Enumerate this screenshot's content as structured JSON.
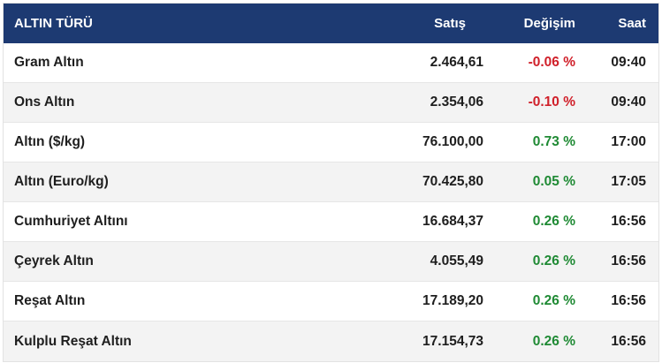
{
  "table": {
    "headers": {
      "name": "ALTIN TÜRÜ",
      "price": "Satış",
      "change": "Değişim",
      "time": "Saat"
    },
    "rows": [
      {
        "name": "Gram Altın",
        "price": "2.464,61",
        "change": "-0.06 %",
        "time": "09:40",
        "direction": "down"
      },
      {
        "name": "Ons Altın",
        "price": "2.354,06",
        "change": "-0.10 %",
        "time": "09:40",
        "direction": "down"
      },
      {
        "name": "Altın ($/kg)",
        "price": "76.100,00",
        "change": "0.73 %",
        "time": "17:00",
        "direction": "up"
      },
      {
        "name": "Altın (Euro/kg)",
        "price": "70.425,80",
        "change": "0.05 %",
        "time": "17:05",
        "direction": "up"
      },
      {
        "name": "Cumhuriyet Altını",
        "price": "16.684,37",
        "change": "0.26 %",
        "time": "16:56",
        "direction": "up"
      },
      {
        "name": "Çeyrek Altın",
        "price": "4.055,49",
        "change": "0.26 %",
        "time": "16:56",
        "direction": "up"
      },
      {
        "name": "Reşat Altın",
        "price": "17.189,20",
        "change": "0.26 %",
        "time": "16:56",
        "direction": "up"
      },
      {
        "name": "Kulplu Reşat Altın",
        "price": "17.154,73",
        "change": "0.26 %",
        "time": "16:56",
        "direction": "up"
      }
    ],
    "colors": {
      "header_bg": "#1d3a72",
      "negative": "#d0202a",
      "positive": "#1f8a34",
      "alt_row": "#f3f3f3"
    }
  }
}
